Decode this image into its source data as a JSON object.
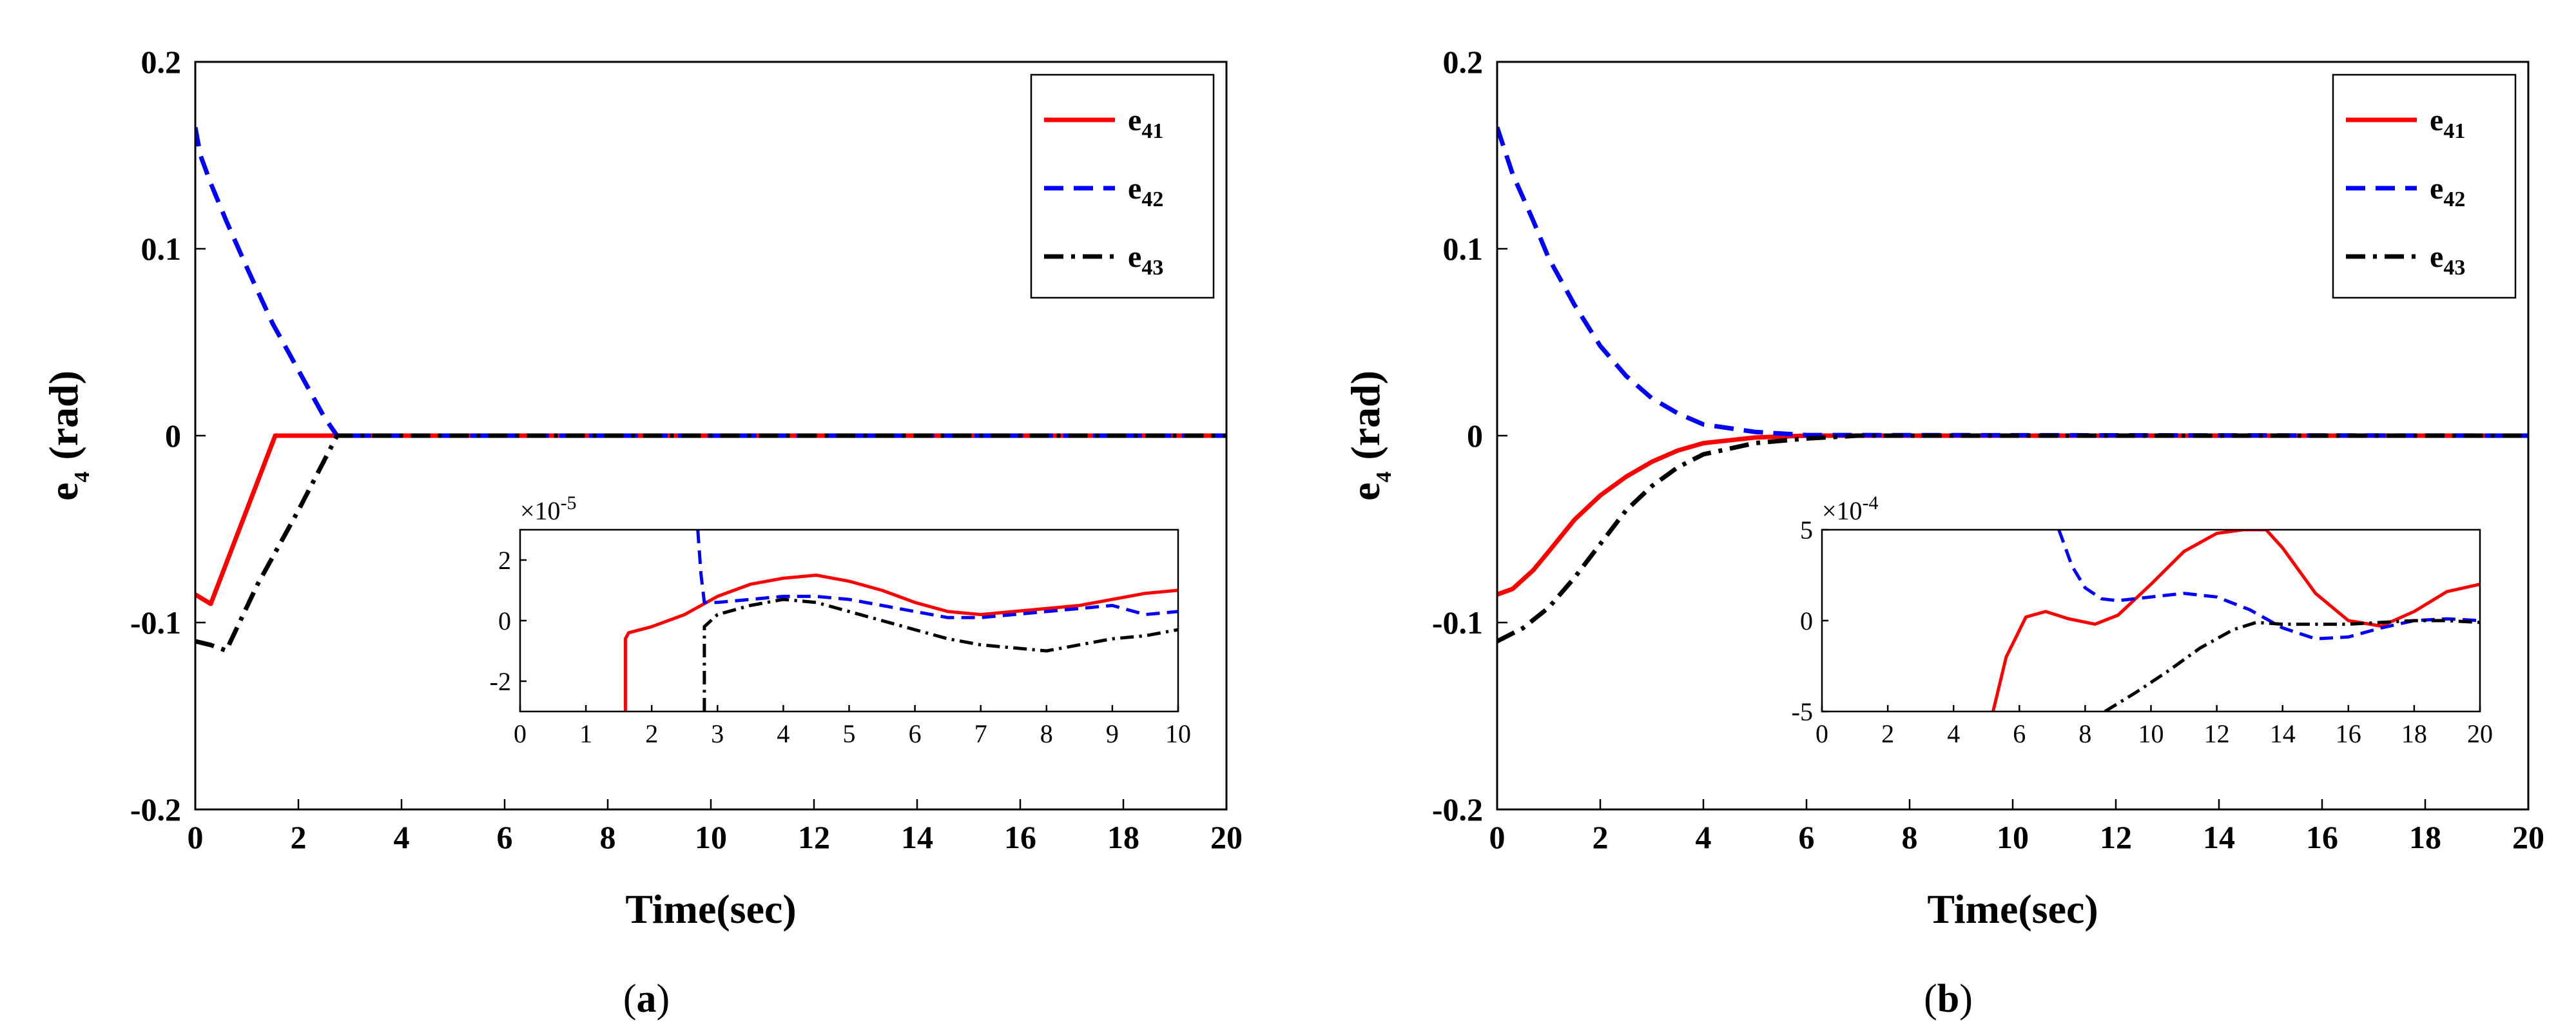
{
  "chart_data": [
    {
      "type": "line",
      "caption_letter": "a",
      "xlabel": "Time(sec)",
      "ylabel_main": "e",
      "ylabel_sub": "4",
      "ylabel_unit": "(rad)",
      "xlim": [
        0,
        20
      ],
      "ylim": [
        -0.2,
        0.2
      ],
      "xticks": [
        "0",
        "2",
        "4",
        "6",
        "8",
        "10",
        "12",
        "14",
        "16",
        "18",
        "20"
      ],
      "yticks": [
        "-0.2",
        "-0.1",
        "0",
        "0.1",
        "0.2"
      ],
      "legend_position": "top-right",
      "series": [
        {
          "name_main": "e",
          "name_sub": "41",
          "color": "#ff0000",
          "style": "solid",
          "x": [
            0,
            0.3,
            1.55,
            20
          ],
          "y": [
            -0.085,
            -0.09,
            0,
            0
          ]
        },
        {
          "name_main": "e",
          "name_sub": "42",
          "color": "#0000ff",
          "style": "dashed",
          "x": [
            0,
            0.1,
            0.3,
            0.6,
            1.0,
            1.5,
            2.0,
            2.5,
            2.75,
            20
          ],
          "y": [
            0.165,
            0.15,
            0.135,
            0.115,
            0.09,
            0.06,
            0.035,
            0.01,
            0,
            0
          ]
        },
        {
          "name_main": "e",
          "name_sub": "43",
          "color": "#000000",
          "style": "dashdot",
          "x": [
            0,
            0.3,
            0.6,
            1.2,
            2.0,
            2.75,
            20
          ],
          "y": [
            -0.11,
            -0.112,
            -0.115,
            -0.08,
            -0.04,
            0,
            0
          ]
        }
      ],
      "inset": {
        "xlim": [
          0,
          10
        ],
        "ylim": [
          -3,
          3
        ],
        "xticks": [
          "0",
          "1",
          "2",
          "3",
          "4",
          "5",
          "6",
          "7",
          "8",
          "9",
          "10"
        ],
        "yticks": [
          "-2",
          "0",
          "2"
        ],
        "multiplier_base": "×10",
        "multiplier_exp": "-5",
        "series": [
          {
            "color": "#ff0000",
            "style": "solid",
            "x": [
              1.6,
              1.6,
              1.65,
              2,
              2.5,
              3,
              3.5,
              4,
              4.5,
              5,
              5.5,
              6,
              6.5,
              7,
              7.5,
              8,
              8.5,
              9,
              9.5,
              10
            ],
            "y": [
              -3,
              -0.6,
              -0.4,
              -0.2,
              0.2,
              0.8,
              1.2,
              1.4,
              1.5,
              1.3,
              1.0,
              0.6,
              0.3,
              0.2,
              0.3,
              0.4,
              0.5,
              0.7,
              0.9,
              1.0
            ]
          },
          {
            "color": "#0000ff",
            "style": "dashed",
            "x": [
              2.7,
              2.75,
              2.8,
              3,
              3.5,
              4,
              4.5,
              5,
              5.5,
              6,
              6.5,
              7,
              7.5,
              8,
              8.5,
              9,
              9.5,
              10
            ],
            "y": [
              3,
              1.5,
              0.6,
              0.6,
              0.7,
              0.8,
              0.8,
              0.7,
              0.5,
              0.3,
              0.1,
              0.1,
              0.2,
              0.3,
              0.4,
              0.5,
              0.2,
              0.3
            ]
          },
          {
            "color": "#000000",
            "style": "dashdot",
            "x": [
              2.8,
              2.8,
              3,
              3.5,
              4,
              4.5,
              5,
              5.5,
              6,
              6.5,
              7,
              7.5,
              8,
              8.5,
              9,
              9.5,
              10
            ],
            "y": [
              -3,
              -0.2,
              0.2,
              0.5,
              0.7,
              0.6,
              0.3,
              0,
              -0.3,
              -0.6,
              -0.8,
              -0.9,
              -1.0,
              -0.8,
              -0.6,
              -0.5,
              -0.3
            ]
          }
        ]
      }
    },
    {
      "type": "line",
      "caption_letter": "b",
      "xlabel": "Time(sec)",
      "ylabel_main": "e",
      "ylabel_sub": "4",
      "ylabel_unit": "(rad)",
      "xlim": [
        0,
        20
      ],
      "ylim": [
        -0.2,
        0.2
      ],
      "xticks": [
        "0",
        "2",
        "4",
        "6",
        "8",
        "10",
        "12",
        "14",
        "16",
        "18",
        "20"
      ],
      "yticks": [
        "-0.2",
        "-0.1",
        "0",
        "0.1",
        "0.2"
      ],
      "legend_position": "top-right",
      "series": [
        {
          "name_main": "e",
          "name_sub": "41",
          "color": "#ff0000",
          "style": "solid",
          "x": [
            0,
            0.3,
            0.7,
            1.0,
            1.5,
            2.0,
            2.5,
            3.0,
            3.5,
            4.0,
            5.0,
            6.0,
            20
          ],
          "y": [
            -0.085,
            -0.082,
            -0.072,
            -0.062,
            -0.045,
            -0.032,
            -0.022,
            -0.014,
            -0.008,
            -0.004,
            -0.001,
            0,
            0
          ]
        },
        {
          "name_main": "e",
          "name_sub": "42",
          "color": "#0000ff",
          "style": "dashed",
          "x": [
            0,
            0.3,
            0.7,
            1.0,
            1.5,
            2.0,
            2.5,
            3.0,
            3.5,
            4.0,
            5.0,
            6.0,
            20
          ],
          "y": [
            0.165,
            0.14,
            0.115,
            0.095,
            0.07,
            0.048,
            0.032,
            0.02,
            0.012,
            0.006,
            0.002,
            0.0003,
            0
          ]
        },
        {
          "name_main": "e",
          "name_sub": "43",
          "color": "#000000",
          "style": "dashdot",
          "x": [
            0,
            0.5,
            1.0,
            1.5,
            2.0,
            2.5,
            3.0,
            3.5,
            4.0,
            5.0,
            6.0,
            7.0,
            20
          ],
          "y": [
            -0.11,
            -0.103,
            -0.092,
            -0.076,
            -0.058,
            -0.04,
            -0.027,
            -0.017,
            -0.01,
            -0.004,
            -0.0015,
            0,
            0
          ]
        }
      ],
      "inset": {
        "xlim": [
          0,
          20
        ],
        "ylim": [
          -5,
          5
        ],
        "xticks": [
          "0",
          "2",
          "4",
          "6",
          "8",
          "10",
          "12",
          "14",
          "16",
          "18",
          "20"
        ],
        "yticks": [
          "-5",
          "0",
          "5"
        ],
        "multiplier_base": "×10",
        "multiplier_exp": "-4",
        "series": [
          {
            "color": "#ff0000",
            "style": "solid",
            "x": [
              5.2,
              5.6,
              6.2,
              6.8,
              7.5,
              8.3,
              9.0,
              10.0,
              11.0,
              12.0,
              12.8,
              13.5,
              14.0,
              15.0,
              16.0,
              17.0,
              18.0,
              19.0,
              20.0
            ],
            "y": [
              -5,
              -2,
              0.2,
              0.5,
              0.1,
              -0.2,
              0.3,
              2.0,
              3.8,
              4.8,
              5.0,
              5.0,
              4.0,
              1.5,
              0,
              -0.3,
              0.5,
              1.6,
              2.0
            ]
          },
          {
            "color": "#0000ff",
            "style": "dashed",
            "x": [
              7.2,
              7.6,
              8.0,
              8.5,
              9.0,
              10.0,
              11.0,
              12.0,
              13.0,
              14.0,
              15.0,
              16.0,
              17.0,
              18.0,
              19.0,
              20.0
            ],
            "y": [
              5,
              3.0,
              1.8,
              1.2,
              1.1,
              1.3,
              1.5,
              1.3,
              0.6,
              -0.4,
              -1.0,
              -0.9,
              -0.4,
              0,
              0.1,
              0
            ]
          },
          {
            "color": "#000000",
            "style": "dashdot",
            "x": [
              8.6,
              9.5,
              10.5,
              11.5,
              12.5,
              13.2,
              14.0,
              15.0,
              16.0,
              17.0,
              18.0,
              19.0,
              20.0
            ],
            "y": [
              -5,
              -4.0,
              -2.8,
              -1.5,
              -0.5,
              -0.1,
              -0.2,
              -0.2,
              -0.2,
              -0.1,
              0,
              0,
              -0.1
            ]
          }
        ]
      }
    }
  ]
}
